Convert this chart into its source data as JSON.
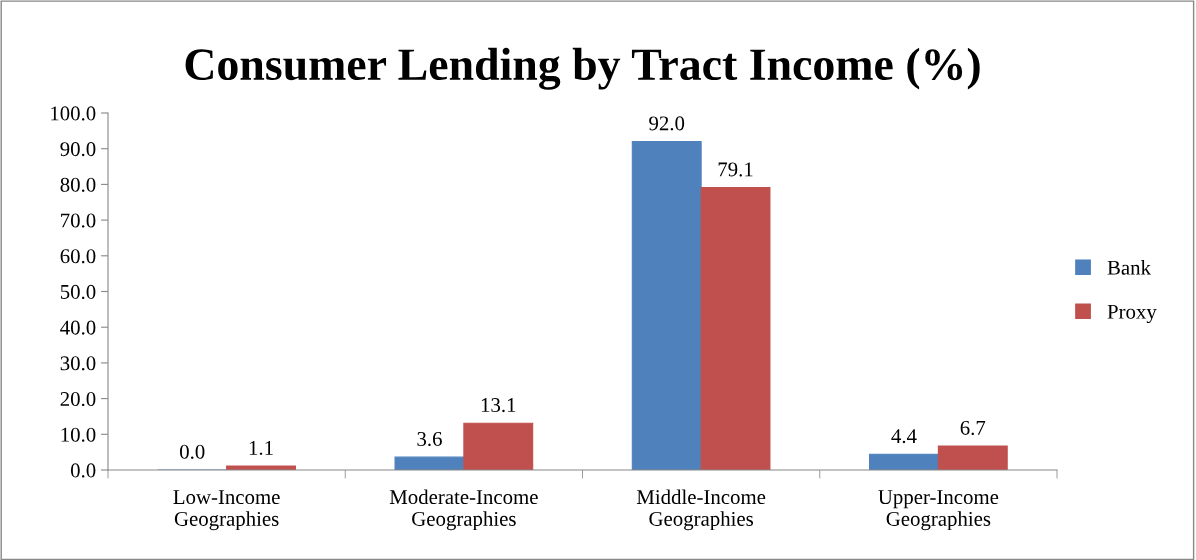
{
  "chart_data": {
    "type": "bar",
    "title": "Consumer Lending by Tract Income (%)",
    "categories": [
      "Low-Income\nGeographies",
      "Moderate-Income\nGeographies",
      "Middle-Income\nGeographies",
      "Upper-Income\nGeographies"
    ],
    "series": [
      {
        "name": "Bank",
        "color": "#4f81bd",
        "values": [
          0.0,
          3.6,
          92.0,
          4.4
        ],
        "value_labels": [
          "0.0",
          "3.6",
          "92.0",
          "4.4"
        ]
      },
      {
        "name": "Proxy",
        "color": "#c0504d",
        "values": [
          1.1,
          13.1,
          79.1,
          6.7
        ],
        "value_labels": [
          "1.1",
          "13.1",
          "79.1",
          "6.7"
        ]
      }
    ],
    "ylim": [
      0,
      100
    ],
    "yticks": [
      {
        "value": 0,
        "label": "0.0"
      },
      {
        "value": 10,
        "label": "10.0"
      },
      {
        "value": 20,
        "label": "20.0"
      },
      {
        "value": 30,
        "label": "30.0"
      },
      {
        "value": 40,
        "label": "40.0"
      },
      {
        "value": 50,
        "label": "50.0"
      },
      {
        "value": 60,
        "label": "60.0"
      },
      {
        "value": 70,
        "label": "70.0"
      },
      {
        "value": 80,
        "label": "80.0"
      },
      {
        "value": 90,
        "label": "90.0"
      },
      {
        "value": 100,
        "label": "100.0"
      }
    ],
    "legend": "right",
    "grid": false
  }
}
